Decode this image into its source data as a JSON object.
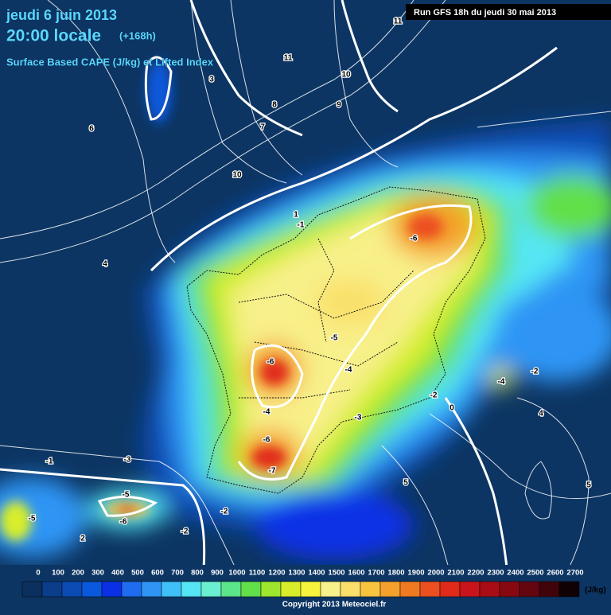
{
  "header": {
    "date": "jeudi 6 juin 2013",
    "time": "20:00 locale",
    "lead": "(+168h)",
    "title": "Surface Based CAPE (J/kg) et Lifted Index",
    "run": "Run GFS 18h du jeudi 30 mai 2013"
  },
  "colorbar": {
    "unit": "(J/kg)",
    "labels": [
      0,
      100,
      200,
      300,
      400,
      500,
      600,
      700,
      800,
      900,
      1000,
      1100,
      1200,
      1300,
      1400,
      1500,
      1600,
      1700,
      1800,
      1900,
      2000,
      2100,
      2200,
      2300,
      2400,
      2500,
      2600,
      2700
    ],
    "colors": [
      "#0b2f5e",
      "#0a3d8a",
      "#0a4bb4",
      "#0a58dc",
      "#0a30e6",
      "#1f6cf0",
      "#2f95f5",
      "#3fc0f8",
      "#55e6f5",
      "#6af0d0",
      "#5ce68a",
      "#62e04a",
      "#9ee62e",
      "#d8ee2a",
      "#f6f43c",
      "#f8f08a",
      "#fae06a",
      "#f8c440",
      "#f4a02c",
      "#f07a22",
      "#ec5020",
      "#e02a1a",
      "#c8141a",
      "#a80c14",
      "#880812",
      "#640610",
      "#40040a",
      "#100104"
    ]
  },
  "contour_labels": [
    -6,
    -6,
    -7,
    -6,
    -5,
    -6,
    -5,
    -4,
    -4,
    -3,
    -2,
    -3,
    -2,
    -1,
    0,
    1,
    2,
    3,
    4,
    5,
    6,
    7,
    8,
    9,
    10,
    11,
    11,
    10,
    -4,
    -2,
    -1,
    -2,
    -5,
    4,
    5
  ],
  "copyright": "Copyright 2013 Meteociel.fr"
}
